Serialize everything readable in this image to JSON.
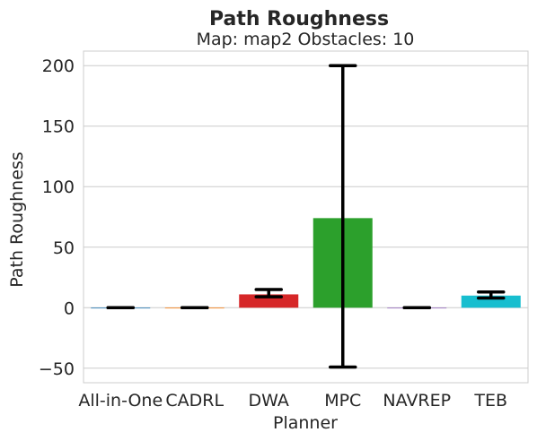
{
  "chart_data": {
    "type": "bar",
    "title": "Path Roughness",
    "subtitle": "Map: map2 Obstacles: 10",
    "xlabel": "Planner",
    "ylabel": "Path Roughness",
    "categories": [
      "All-in-One",
      "CADRL",
      "DWA",
      "MPC",
      "NAVREP",
      "TEB"
    ],
    "values": [
      0,
      0,
      11,
      74,
      0,
      10
    ],
    "error_low": [
      0,
      0,
      9,
      -49,
      0,
      8
    ],
    "error_high": [
      0,
      0,
      15,
      200,
      0,
      13
    ],
    "colors": [
      "#1f77b4",
      "#ff7f0e",
      "#d62728",
      "#2ca02c",
      "#9467bd",
      "#17becf"
    ],
    "ylim": [
      -62,
      212
    ],
    "yticks": [
      -50,
      0,
      50,
      100,
      150,
      200
    ],
    "ytick_labels": [
      "−50",
      "0",
      "50",
      "100",
      "150",
      "200"
    ],
    "grid": true,
    "legend": "none"
  }
}
